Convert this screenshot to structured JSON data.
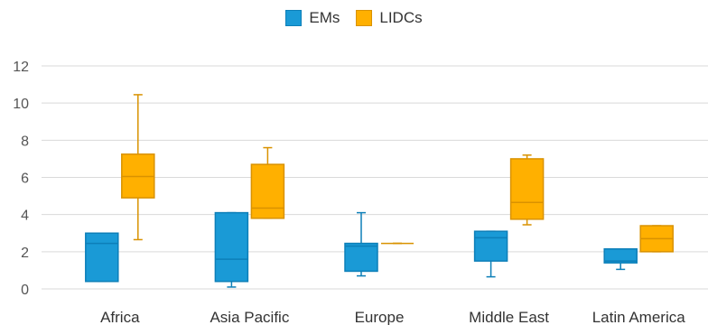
{
  "chart_data": {
    "type": "box",
    "title": "",
    "xlabel": "",
    "ylabel": "",
    "ylim": [
      0,
      12
    ],
    "yticks": [
      "0",
      "2",
      "4",
      "6",
      "8",
      "10",
      "12"
    ],
    "grid": true,
    "legend_position": "top-center",
    "categories": [
      "Africa",
      "Asia Pacific",
      "Europe",
      "Middle East",
      "Latin America"
    ],
    "series": [
      {
        "name": "EMs",
        "color": "#1a9ad6",
        "edge": "#0d7fb8",
        "boxes": [
          {
            "min": 0.4,
            "q1": 0.4,
            "median": 2.45,
            "q3": 3.0,
            "max": 3.0
          },
          {
            "min": 0.1,
            "q1": 0.4,
            "median": 1.6,
            "q3": 4.1,
            "max": 4.1
          },
          {
            "min": 0.7,
            "q1": 0.95,
            "median": 2.3,
            "q3": 2.45,
            "max": 4.1
          },
          {
            "min": 0.65,
            "q1": 1.5,
            "median": 2.75,
            "q3": 3.1,
            "max": 3.1
          },
          {
            "min": 1.05,
            "q1": 1.4,
            "median": 1.5,
            "q3": 2.15,
            "max": 2.15
          }
        ]
      },
      {
        "name": "LIDCs",
        "color": "#ffb000",
        "edge": "#d99200",
        "boxes": [
          {
            "min": 2.65,
            "q1": 4.9,
            "median": 6.05,
            "q3": 7.25,
            "max": 10.45
          },
          {
            "min": 3.8,
            "q1": 3.8,
            "median": 4.35,
            "q3": 6.7,
            "max": 7.6
          },
          {
            "min": 2.45,
            "q1": 2.45,
            "median": 2.45,
            "q3": 2.45,
            "max": 2.45
          },
          {
            "min": 3.45,
            "q1": 3.75,
            "median": 4.65,
            "q3": 7.0,
            "max": 7.2
          },
          {
            "min": 2.0,
            "q1": 2.0,
            "median": 2.7,
            "q3": 3.4,
            "max": 3.4
          }
        ]
      }
    ]
  }
}
